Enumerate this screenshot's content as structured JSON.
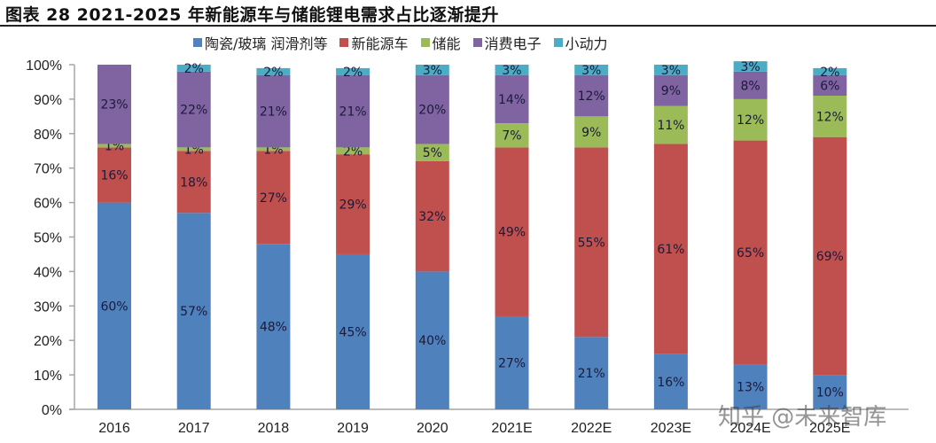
{
  "title": "图表 28 2021-2025 年新能源车与储能锂电需求占比逐渐提升",
  "watermark": "知乎 @未来智库",
  "chart_data": {
    "type": "bar",
    "stacked": true,
    "title": "图表 28 2021-2025 年新能源车与储能锂电需求占比逐渐提升",
    "xlabel": "",
    "ylabel": "",
    "ylim": [
      0,
      100
    ],
    "y_ticks": [
      "0%",
      "10%",
      "20%",
      "30%",
      "40%",
      "50%",
      "60%",
      "70%",
      "80%",
      "90%",
      "100%"
    ],
    "legend_position": "top-right",
    "grid": false,
    "categories": [
      "2016",
      "2017",
      "2018",
      "2019",
      "2020",
      "2021E",
      "2022E",
      "2023E",
      "2024E",
      "2025E"
    ],
    "series": [
      {
        "name": "陶瓷/玻璃 润滑剂等",
        "color": "#4F81BD",
        "values": [
          60,
          57,
          48,
          45,
          40,
          27,
          21,
          16,
          13,
          10
        ]
      },
      {
        "name": "新能源车",
        "color": "#C0504D",
        "values": [
          16,
          18,
          27,
          29,
          32,
          49,
          55,
          61,
          65,
          69
        ]
      },
      {
        "name": "储能",
        "color": "#9BBB59",
        "values": [
          1,
          1,
          1,
          2,
          5,
          7,
          9,
          11,
          12,
          12
        ]
      },
      {
        "name": "消费电子",
        "color": "#8064A2",
        "values": [
          23,
          22,
          21,
          21,
          20,
          14,
          12,
          9,
          8,
          6
        ]
      },
      {
        "name": "小动力",
        "color": "#4BACC6",
        "values": [
          0,
          2,
          2,
          2,
          3,
          3,
          3,
          3,
          3,
          2
        ]
      }
    ],
    "labels": [
      [
        "60%",
        "57%",
        "48%",
        "45%",
        "40%",
        "27%",
        "21%",
        "16%",
        "13%",
        "10%"
      ],
      [
        "16%",
        "18%",
        "27%",
        "29%",
        "32%",
        "49%",
        "55%",
        "61%",
        "65%",
        "69%"
      ],
      [
        "1%",
        "1%",
        "1%",
        "2%",
        "5%",
        "7%",
        "9%",
        "11%",
        "12%",
        "12%"
      ],
      [
        "23%",
        "22%",
        "21%",
        "21%",
        "20%",
        "14%",
        "12%",
        "9%",
        "8%",
        "6%"
      ],
      [
        "",
        "2%",
        "2%",
        "2%",
        "3%",
        "3%",
        "3%",
        "3%",
        "3%",
        "2%"
      ]
    ]
  }
}
